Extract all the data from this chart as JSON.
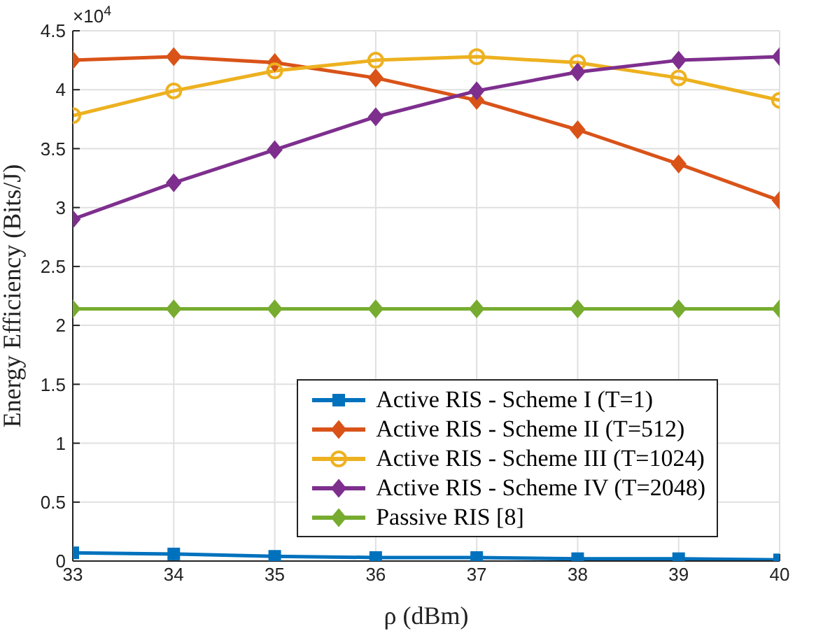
{
  "chart_data": {
    "type": "line",
    "xlabel": "ρ (dBm)",
    "ylabel": "Energy Efficiency (Bits/J)",
    "annotations": [
      "×10$^{4}$"
    ],
    "x": [
      33,
      34,
      35,
      36,
      37,
      38,
      39,
      40
    ],
    "series": [
      {
        "name": "Active RIS - Scheme I (T=1)",
        "color": "#0072bd",
        "marker": "square",
        "values": [
          0.07,
          0.06,
          0.04,
          0.03,
          0.03,
          0.02,
          0.02,
          0.01
        ]
      },
      {
        "name": "Active RIS - Scheme II (T=512)",
        "color": "#d95319",
        "marker": "diamond",
        "values": [
          4.25,
          4.28,
          4.23,
          4.1,
          3.91,
          3.66,
          3.37,
          3.06
        ]
      },
      {
        "name": "Active RIS - Scheme III (T=1024)",
        "color": "#edb120",
        "marker": "circle",
        "values": [
          3.78,
          3.99,
          4.16,
          4.25,
          4.28,
          4.23,
          4.1,
          3.91
        ]
      },
      {
        "name": "Active RIS - Scheme IV (T=2048)",
        "color": "#7e2f8e",
        "marker": "diamond",
        "values": [
          2.9,
          3.21,
          3.49,
          3.77,
          3.99,
          4.15,
          4.25,
          4.28
        ]
      },
      {
        "name": "Passive RIS [8]",
        "color": "#77ac30",
        "marker": "diamond",
        "values": [
          2.14,
          2.14,
          2.14,
          2.14,
          2.14,
          2.14,
          2.14,
          2.14
        ]
      }
    ],
    "xlim": [
      33,
      40
    ],
    "xticks": [
      33,
      34,
      35,
      36,
      37,
      38,
      39,
      40
    ],
    "ylim": [
      0,
      4.5
    ],
    "yticks": [
      0,
      0.5,
      1,
      1.5,
      2,
      2.5,
      3,
      3.5,
      4,
      4.5
    ],
    "grid": true,
    "legend": "bottom right",
    "line_style": "solid"
  }
}
